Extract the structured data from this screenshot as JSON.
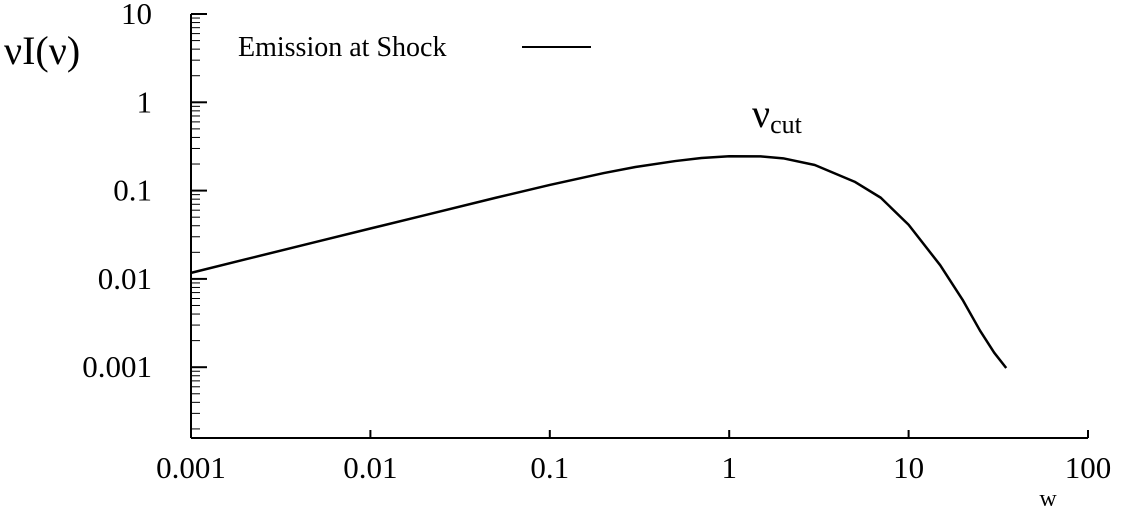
{
  "chart_data": {
    "type": "line",
    "xscale": "log",
    "yscale": "log",
    "xlim": [
      0.001,
      100
    ],
    "ylim": [
      0.0001,
      10
    ],
    "xlabel": "w",
    "ylabel": "νI(ν)",
    "xticks": [
      "0.001",
      "0.01",
      "0.1",
      "1",
      "10",
      "100"
    ],
    "yticks": [
      "10",
      "1",
      "0.1",
      "0.01",
      "0.001"
    ],
    "annotation": {
      "text": "ν",
      "sub": "cut"
    },
    "legend": {
      "position": "top-left",
      "entries": [
        "Emission at Shock"
      ]
    },
    "series": [
      {
        "name": "Emission at Shock",
        "x": [
          0.001,
          0.002,
          0.005,
          0.01,
          0.02,
          0.05,
          0.1,
          0.2,
          0.3,
          0.5,
          0.7,
          1,
          1.5,
          2,
          3,
          5,
          7,
          10,
          15,
          20,
          25,
          30,
          35
        ],
        "y": [
          0.0117,
          0.0166,
          0.0263,
          0.0372,
          0.0525,
          0.083,
          0.116,
          0.158,
          0.185,
          0.216,
          0.234,
          0.245,
          0.244,
          0.232,
          0.195,
          0.126,
          0.083,
          0.041,
          0.0143,
          0.0058,
          0.0026,
          0.00146,
          0.00098
        ]
      }
    ]
  }
}
